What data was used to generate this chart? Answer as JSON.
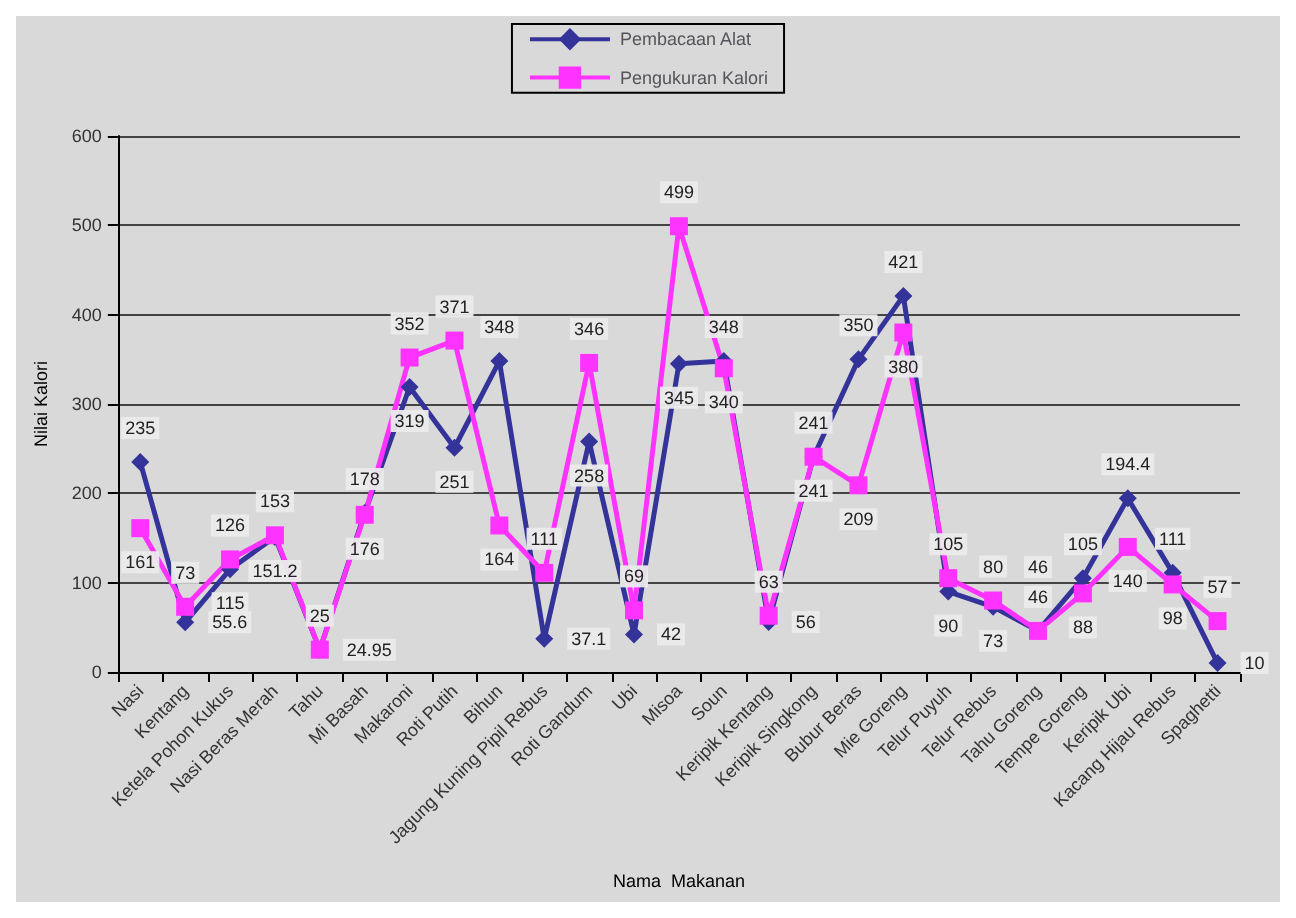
{
  "chart_data": {
    "type": "line",
    "xlabel": "Nama  Makanan",
    "ylabel": "Nilai Kalori",
    "categories": [
      "Nasi",
      "Kentang",
      "Ketela Pohon Kukus",
      "Nasi Beras Merah",
      "Tahu",
      "Mi Basah",
      "Makaroni",
      "Roti Putih",
      "Bihun",
      "Jagung Kuning Pipil Rebus",
      "Roti Gandum",
      "Ubi",
      "Misoa",
      "Soun",
      "Keripik Kentang",
      "Keripik Singkong",
      "Bubur Beras",
      "Mie Goreng",
      "Telur Puyuh",
      "Telur Rebus",
      "Tahu Goreng",
      "Tempe Goreng",
      "Keripik Ubi",
      "Kacang Hijau Rebus",
      "Spaghetti"
    ],
    "series": [
      {
        "name": "Pembacaan Alat",
        "color": "#333399",
        "marker": "diamond",
        "values": [
          235,
          55.6,
          115,
          151.2,
          24.95,
          178,
          319,
          251,
          348,
          37.1,
          258,
          42,
          345,
          348,
          56,
          241,
          350,
          421,
          90,
          73,
          46,
          105,
          194.4,
          111,
          10
        ]
      },
      {
        "name": "Pengukuran Kalori",
        "color": "#ff33ff",
        "marker": "square",
        "values": [
          161,
          73,
          126,
          153,
          25,
          176,
          352,
          371,
          164,
          111,
          346,
          69,
          499,
          340,
          63,
          241,
          209,
          380,
          105,
          80,
          46,
          88,
          140,
          98,
          57
        ]
      }
    ],
    "ylim": [
      0,
      600
    ],
    "yticks": [
      0,
      100,
      200,
      300,
      400,
      500,
      600
    ],
    "grid": "y",
    "legend": "top",
    "data_labels": true
  }
}
